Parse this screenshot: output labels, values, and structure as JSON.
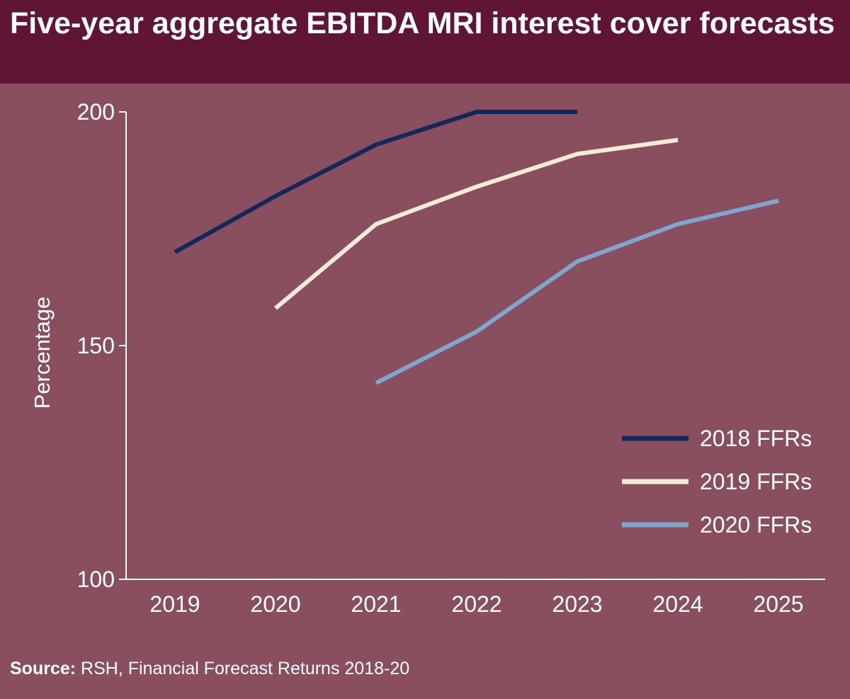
{
  "colors": {
    "background": "#894f5f",
    "header": "#601533",
    "text": "#ffffff",
    "axis": "#ffffff"
  },
  "header": {
    "title": "Five-year aggregate EBITDA MRI interest cover forecasts"
  },
  "source": {
    "label": "Source:",
    "text": "RSH, Financial Forecast Returns 2018-20"
  },
  "chart_data": {
    "type": "line",
    "title": "Five-year aggregate EBITDA MRI interest cover forecasts",
    "xlabel": "",
    "ylabel": "Percentage",
    "categories": [
      "2019",
      "2020",
      "2021",
      "2022",
      "2023",
      "2024",
      "2025"
    ],
    "ylim": [
      100,
      200
    ],
    "yticks": [
      100,
      150,
      200
    ],
    "grid": false,
    "legend_position": "bottom-right",
    "series": [
      {
        "name": "2018 FFRs",
        "color": "#12285a",
        "values": [
          170,
          182,
          193,
          200,
          200,
          null,
          null
        ]
      },
      {
        "name": "2019 FFRs",
        "color": "#f5ecd7",
        "values": [
          null,
          158,
          176,
          184,
          191,
          194,
          null
        ]
      },
      {
        "name": "2020 FFRs",
        "color": "#7fa6cc",
        "values": [
          null,
          null,
          142,
          153,
          168,
          176,
          181
        ]
      }
    ]
  }
}
